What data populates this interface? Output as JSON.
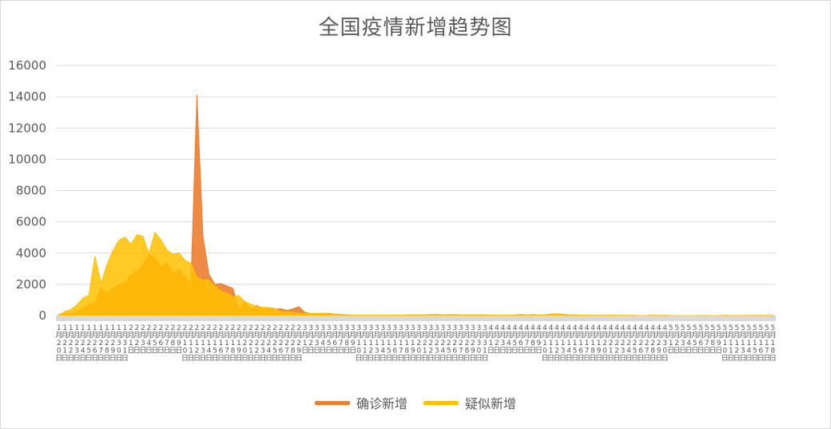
{
  "chart_data": {
    "type": "area",
    "title": "全国疫情新增趋势图",
    "xlabel": "",
    "ylabel": "",
    "ylim": [
      0,
      16000
    ],
    "yticks": [
      0,
      2000,
      4000,
      6000,
      8000,
      10000,
      12000,
      14000,
      16000
    ],
    "grid": true,
    "legend_position": "bottom",
    "categories": [
      "1月20日",
      "1月21日",
      "1月22日",
      "1月23日",
      "1月24日",
      "1月25日",
      "1月26日",
      "1月27日",
      "1月28日",
      "1月29日",
      "1月30日",
      "1月31日",
      "2月1日",
      "2月2日",
      "2月3日",
      "2月4日",
      "2月5日",
      "2月6日",
      "2月7日",
      "2月8日",
      "2月9日",
      "2月10日",
      "2月11日",
      "2月12日",
      "2月13日",
      "2月14日",
      "2月15日",
      "2月16日",
      "2月17日",
      "2月18日",
      "2月19日",
      "2月20日",
      "2月21日",
      "2月22日",
      "2月23日",
      "2月24日",
      "2月25日",
      "2月26日",
      "2月27日",
      "2月28日",
      "2月29日",
      "3月1日",
      "3月2日",
      "3月3日",
      "3月4日",
      "3月5日",
      "3月6日",
      "3月7日",
      "3月8日",
      "3月9日",
      "3月10日",
      "3月11日",
      "3月12日",
      "3月13日",
      "3月14日",
      "3月15日",
      "3月16日",
      "3月17日",
      "3月18日",
      "3月19日",
      "3月20日",
      "3月21日",
      "3月22日",
      "3月23日",
      "3月24日",
      "3月25日",
      "3月26日",
      "3月27日",
      "3月28日",
      "3月29日",
      "3月30日",
      "3月31日",
      "4月1日",
      "4月2日",
      "4月3日",
      "4月4日",
      "4月5日",
      "4月6日",
      "4月7日",
      "4月8日",
      "4月9日",
      "4月10日",
      "4月11日",
      "4月12日",
      "4月13日",
      "4月14日",
      "4月15日",
      "4月16日",
      "4月17日",
      "4月18日",
      "4月19日",
      "4月20日",
      "4月21日",
      "4月22日",
      "4月23日",
      "4月24日",
      "4月25日",
      "4月26日",
      "4月27日",
      "4月28日",
      "4月29日",
      "4月30日",
      "5月1日",
      "5月2日",
      "5月3日",
      "5月4日",
      "5月5日",
      "5月6日",
      "5月7日",
      "5月8日",
      "5月9日",
      "5月10日",
      "5月11日",
      "5月12日",
      "5月13日",
      "5月14日",
      "5月15日",
      "5月16日",
      "5月17日",
      "5月18日"
    ],
    "series": [
      {
        "name": "确诊新增",
        "color": "#ed7d31",
        "values": [
          77,
          149,
          131,
          259,
          444,
          688,
          769,
          1771,
          1459,
          1737,
          1982,
          2102,
          2590,
          2829,
          3235,
          3887,
          3694,
          3143,
          3385,
          2652,
          2973,
          2467,
          2015,
          14108,
          5090,
          2641,
          2009,
          2048,
          1886,
          1749,
          394,
          889,
          397,
          648,
          409,
          508,
          406,
          433,
          327,
          427,
          573,
          202,
          125,
          119,
          139,
          143,
          99,
          44,
          40,
          19,
          24,
          15,
          8,
          11,
          20,
          16,
          21,
          13,
          34,
          39,
          41,
          46,
          39,
          78,
          47,
          67,
          55,
          54,
          45,
          31,
          48,
          36,
          35,
          31,
          19,
          30,
          39,
          78,
          32,
          62,
          42,
          46,
          99,
          108,
          89,
          46,
          36,
          26,
          27,
          16,
          12,
          11,
          30,
          10,
          10,
          11,
          5,
          3,
          6,
          22,
          4,
          12,
          2,
          1,
          2,
          1,
          2,
          1,
          4,
          1,
          1,
          14,
          1,
          7,
          3,
          8,
          4,
          5,
          7,
          6
        ]
      },
      {
        "name": "疑似新增",
        "color": "#ffc000",
        "values": [
          27,
          257,
          393,
          680,
          1118,
          1309,
          3806,
          2077,
          3248,
          4148,
          4812,
          5019,
          4562,
          5173,
          5072,
          3971,
          5328,
          4833,
          4214,
          3916,
          4008,
          3536,
          3342,
          2450,
          2277,
          2277,
          1918,
          1563,
          1432,
          1185,
          1277,
          892,
          725,
          574,
          530,
          508,
          452,
          248,
          245,
          213,
          142,
          135,
          129,
          143,
          143,
          102,
          99,
          84,
          60,
          36,
          31,
          33,
          33,
          17,
          39,
          28,
          45,
          25,
          48,
          40,
          47,
          54,
          71,
          66,
          47,
          55,
          67,
          54,
          45,
          31,
          48,
          36,
          35,
          31,
          19,
          30,
          39,
          78,
          32,
          62,
          42,
          46,
          99,
          108,
          89,
          46,
          36,
          26,
          27,
          16,
          12,
          11,
          30,
          10,
          10,
          11,
          5,
          3,
          6,
          22,
          4,
          12,
          2,
          1,
          2,
          1,
          2,
          1,
          4,
          1,
          1,
          14,
          1,
          7,
          3,
          8,
          4,
          5,
          7,
          6
        ]
      }
    ]
  }
}
